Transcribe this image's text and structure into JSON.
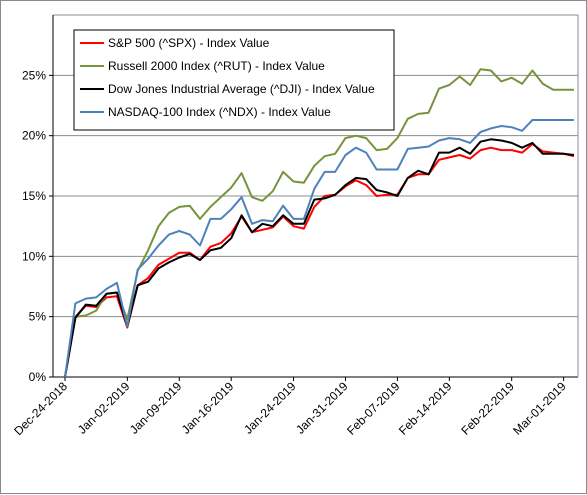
{
  "chart_data": {
    "type": "line",
    "title": "",
    "xlabel": "",
    "ylabel": "",
    "ylim": [
      0,
      30
    ],
    "yticks": [
      "0%",
      "5%",
      "10%",
      "15%",
      "20%",
      "25%"
    ],
    "yticks_values": [
      0,
      5,
      10,
      15,
      20,
      25
    ],
    "grid": "horizontal",
    "legend_position": "top-left",
    "xtick_labels": [
      "Dec-24-2018",
      "Jan-02-2019",
      "Jan-09-2019",
      "Jan-16-2019",
      "Jan-24-2019",
      "Jan-31-2019",
      "Feb-07-2019",
      "Feb-14-2019",
      "Feb-22-2019",
      "Mar-01-2019"
    ],
    "xtick_index": [
      0,
      6,
      11,
      16,
      22,
      27,
      32,
      37,
      43,
      48
    ],
    "x": [
      "2018-12-24",
      "2018-12-26",
      "2018-12-27",
      "2018-12-28",
      "2018-12-31",
      "2019-01-02",
      "2019-01-03",
      "2019-01-04",
      "2019-01-07",
      "2019-01-08",
      "2019-01-09",
      "2019-01-10",
      "2019-01-11",
      "2019-01-14",
      "2019-01-15",
      "2019-01-16",
      "2019-01-17",
      "2019-01-18",
      "2019-01-22",
      "2019-01-23",
      "2019-01-24",
      "2019-01-25",
      "2019-01-28",
      "2019-01-29",
      "2019-01-30",
      "2019-01-31",
      "2019-02-01",
      "2019-02-04",
      "2019-02-05",
      "2019-02-06",
      "2019-02-07",
      "2019-02-08",
      "2019-02-11",
      "2019-02-12",
      "2019-02-13",
      "2019-02-14",
      "2019-02-15",
      "2019-02-19",
      "2019-02-20",
      "2019-02-21",
      "2019-02-22",
      "2019-02-25",
      "2019-02-26",
      "2019-02-27",
      "2019-02-28",
      "2019-03-01",
      "2019-03-04",
      "2019-03-05",
      "2019-03-06",
      "2019-03-07"
    ],
    "series": [
      {
        "name": "S&P 500 (^SPX) - Index Value",
        "color": "#ff0000",
        "values": [
          0,
          5.0,
          5.9,
          5.8,
          6.6,
          6.7,
          4.1,
          7.6,
          8.2,
          9.3,
          9.8,
          10.3,
          10.3,
          9.7,
          10.8,
          11.1,
          11.9,
          13.3,
          12.0,
          12.2,
          12.4,
          13.3,
          12.5,
          12.3,
          14.1,
          15.0,
          15.1,
          15.8,
          16.3,
          15.9,
          15.0,
          15.1,
          15.1,
          16.5,
          16.8,
          16.8,
          18.0,
          18.2,
          18.4,
          18.1,
          18.8,
          19.0,
          18.8,
          18.8,
          18.6,
          19.3,
          18.7,
          18.6,
          18.5,
          18.3
        ]
      },
      {
        "name": "Russell 2000 Index (^RUT) - Index Value",
        "color": "#77933c",
        "values": [
          0,
          5.0,
          5.1,
          5.5,
          6.9,
          7.0,
          4.8,
          8.8,
          10.5,
          12.5,
          13.6,
          14.1,
          14.2,
          13.1,
          14.1,
          14.9,
          15.7,
          16.9,
          14.9,
          14.6,
          15.4,
          17.0,
          16.2,
          16.1,
          17.5,
          18.3,
          18.5,
          19.8,
          20.0,
          19.8,
          18.8,
          18.9,
          19.8,
          21.4,
          21.8,
          21.9,
          23.9,
          24.2,
          24.9,
          24.2,
          25.5,
          25.4,
          24.5,
          24.8,
          24.3,
          25.4,
          24.3,
          23.8,
          23.8,
          23.8
        ]
      },
      {
        "name": "Dow Jones Industrial Average (^DJI) - Index Value",
        "color": "#000000",
        "values": [
          0,
          4.9,
          6.0,
          5.9,
          6.9,
          7.0,
          4.2,
          7.6,
          7.9,
          9.0,
          9.5,
          9.9,
          10.2,
          9.7,
          10.5,
          10.7,
          11.5,
          13.4,
          12.0,
          12.7,
          12.5,
          13.4,
          12.7,
          12.7,
          14.7,
          14.8,
          15.1,
          15.9,
          16.5,
          16.4,
          15.5,
          15.3,
          15.0,
          16.5,
          17.1,
          16.8,
          18.6,
          18.6,
          19.0,
          18.5,
          19.5,
          19.7,
          19.6,
          19.4,
          19.0,
          19.4,
          18.5,
          18.5,
          18.5,
          18.4
        ]
      },
      {
        "name": "NASDAQ-100 Index (^NDX) - Index Value",
        "color": "#4f81bd",
        "values": [
          0,
          6.1,
          6.5,
          6.6,
          7.3,
          7.8,
          4.2,
          8.9,
          9.8,
          10.9,
          11.8,
          12.1,
          11.8,
          10.9,
          13.1,
          13.1,
          13.9,
          14.9,
          12.7,
          13.0,
          12.9,
          14.2,
          13.1,
          13.1,
          15.6,
          17.0,
          17.0,
          18.4,
          19.0,
          18.6,
          17.2,
          17.2,
          17.2,
          18.9,
          19.0,
          19.1,
          19.6,
          19.8,
          19.7,
          19.4,
          20.3,
          20.6,
          20.8,
          20.7,
          20.4,
          21.3,
          21.3,
          21.3,
          21.3,
          21.3
        ]
      }
    ]
  }
}
